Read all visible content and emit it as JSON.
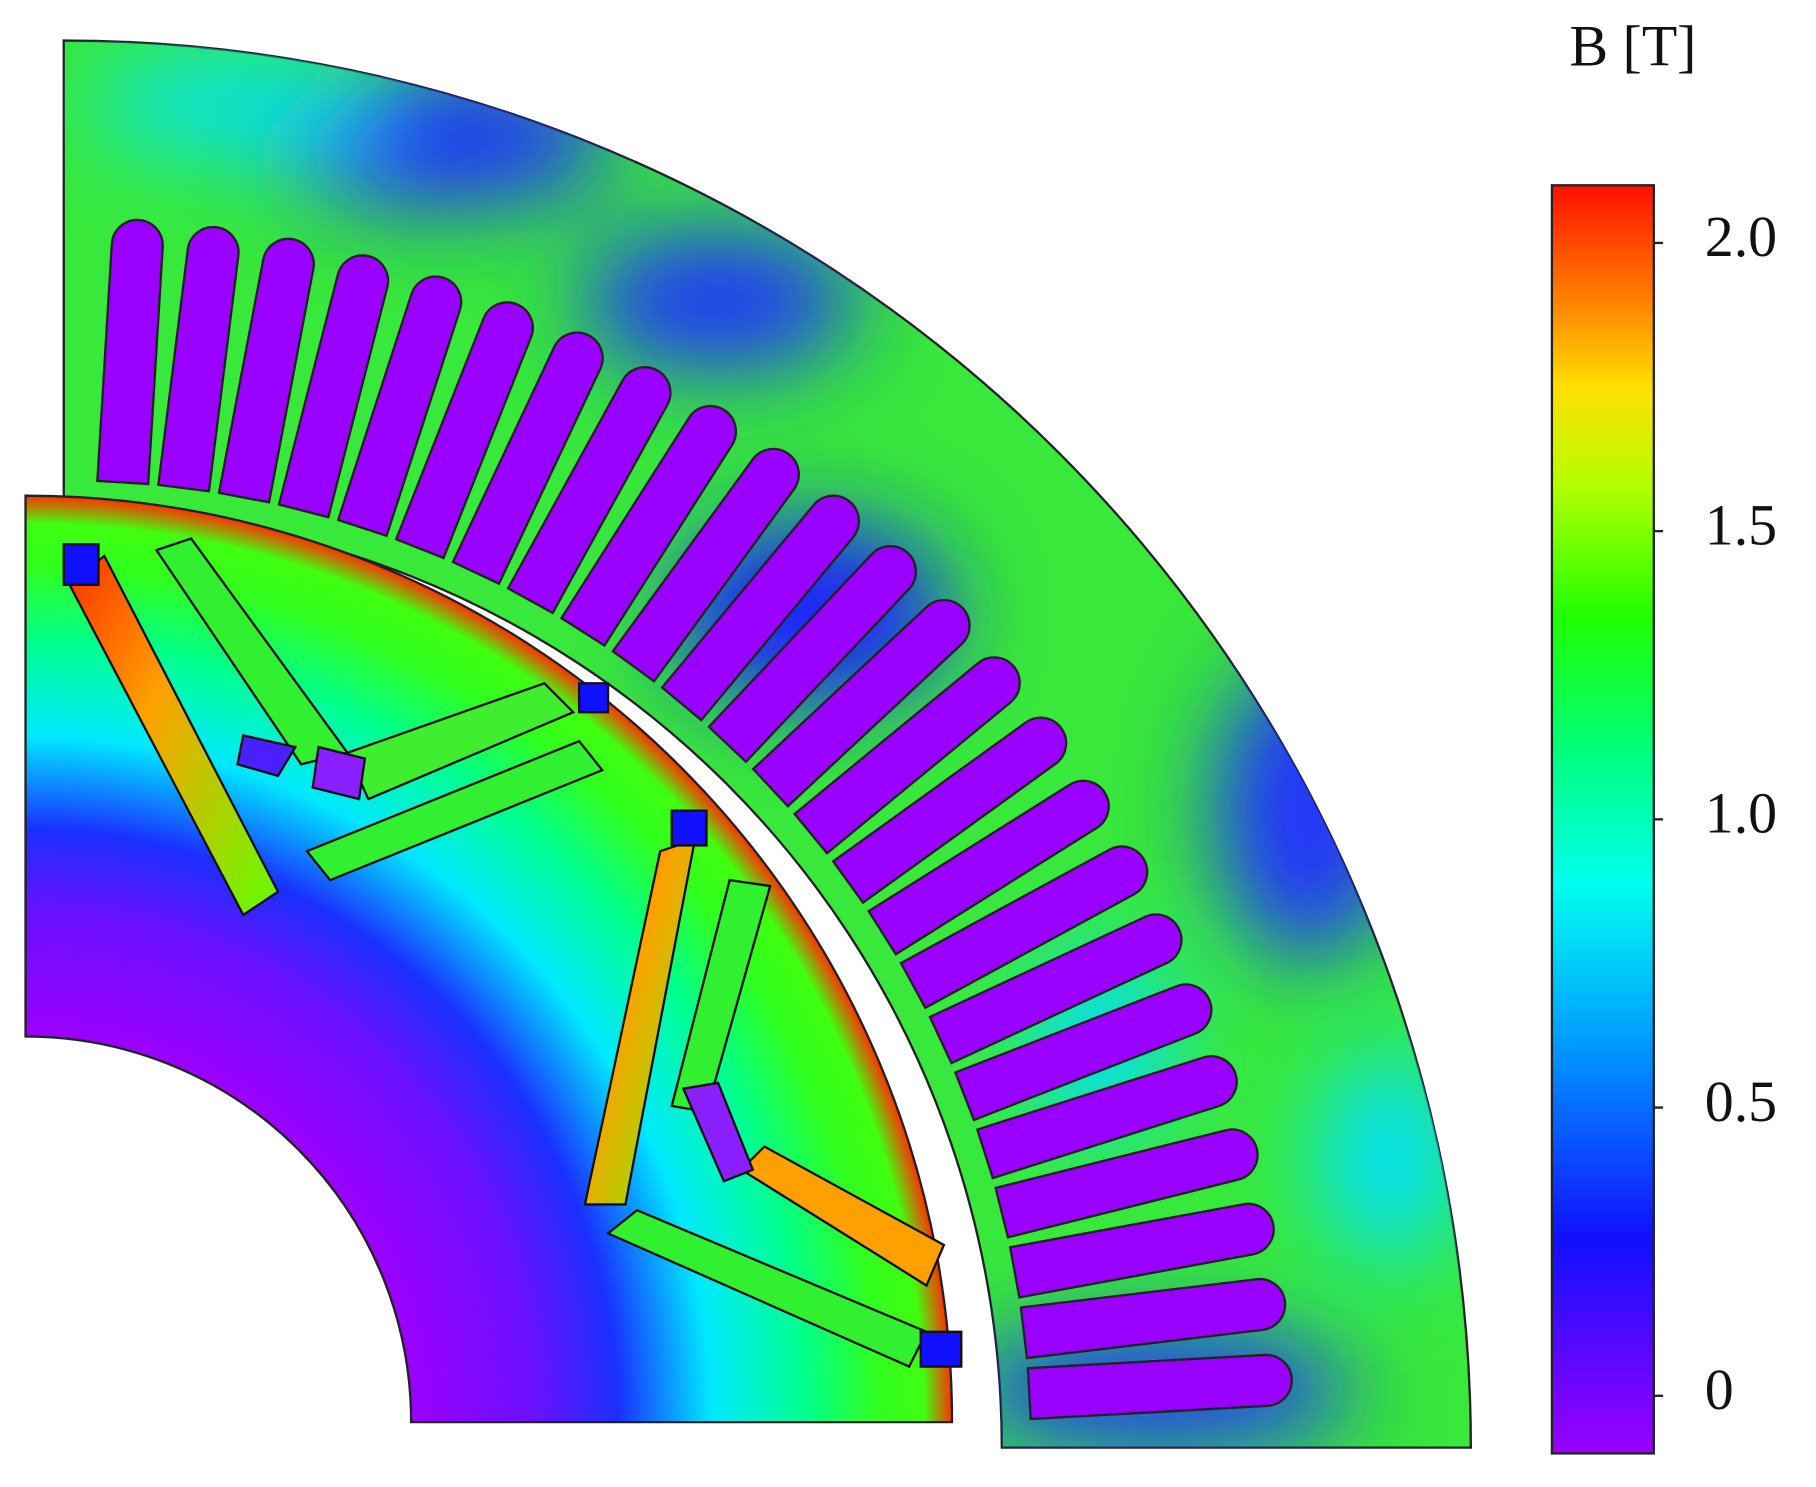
{
  "colorbar": {
    "title": "B [T]",
    "range": [
      -0.1,
      2.1
    ],
    "ticks": [
      0,
      0.5,
      {
        "value": 1,
        "label": "1.0"
      },
      1.5,
      {
        "value": 2,
        "label": "2.0"
      }
    ]
  }
}
